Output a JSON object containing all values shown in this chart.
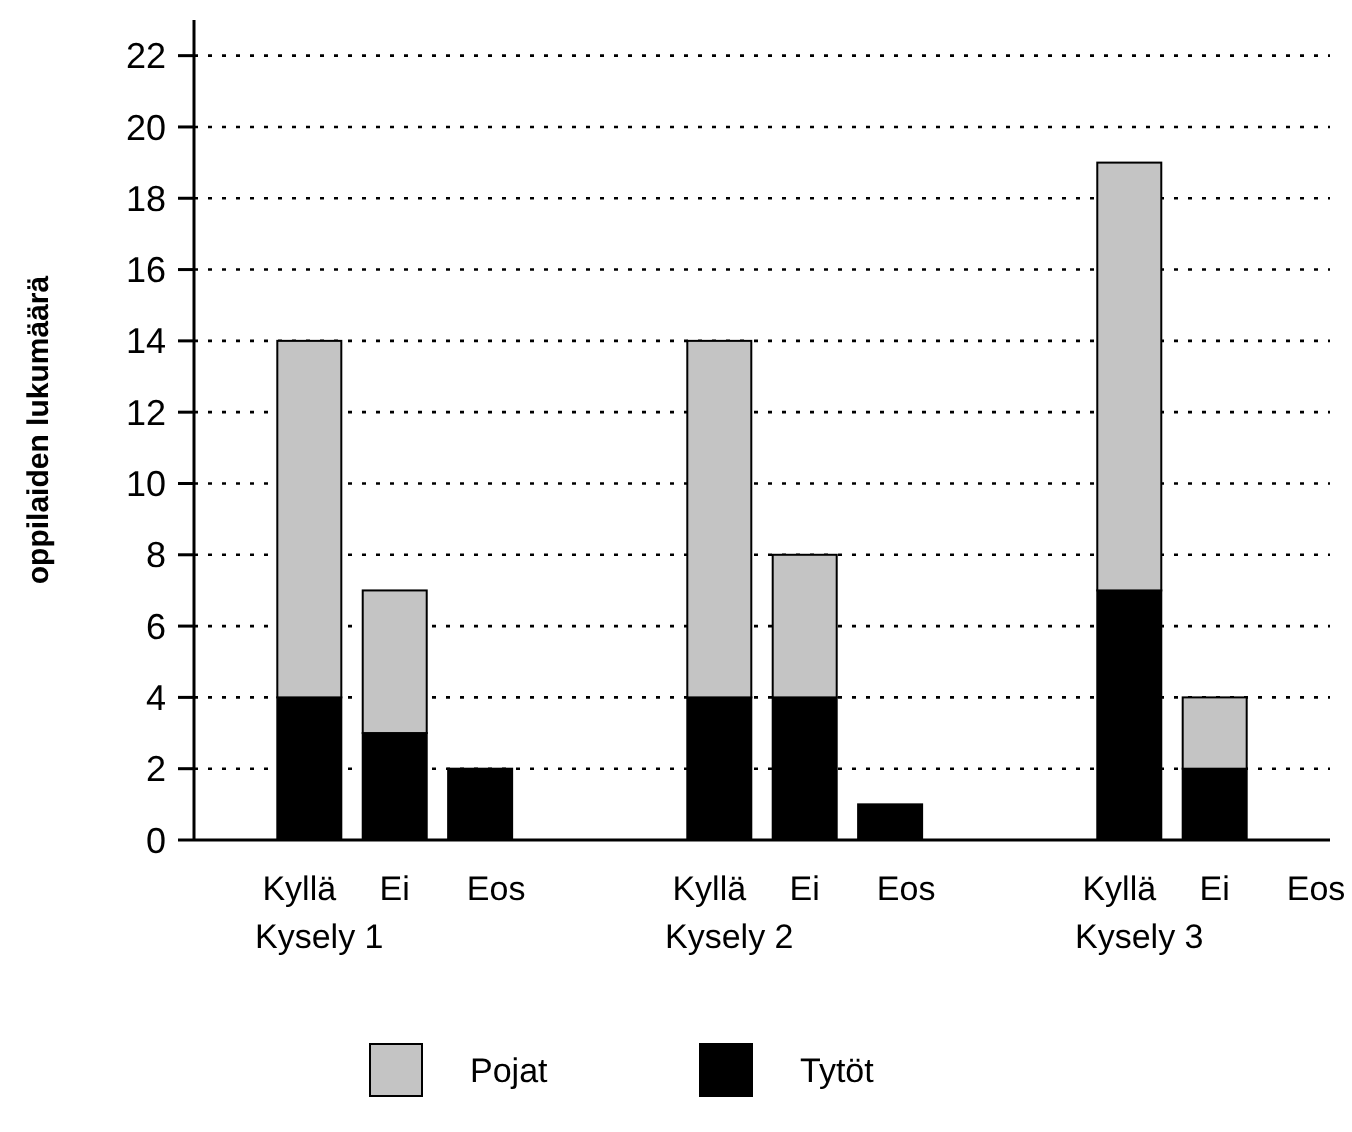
{
  "chart_data": {
    "type": "bar",
    "ylabel": "oppilaiden lukumäärä",
    "categories": [
      "Kyllä",
      "Ei",
      "Eos",
      "Kyllä",
      "Ei",
      "Eos",
      "Kyllä",
      "Ei",
      "Eos"
    ],
    "annotations": [
      "Kysely 1",
      "Kysely 2",
      "Kysely 3"
    ],
    "series": [
      {
        "name": "Tytöt",
        "color": "#000000",
        "values": [
          4,
          3,
          2,
          4,
          4,
          1,
          7,
          2,
          0
        ]
      },
      {
        "name": "Pojat",
        "color": "#c4c4c4",
        "values": [
          10,
          4,
          0,
          10,
          4,
          0,
          12,
          2,
          0
        ]
      }
    ],
    "stacked": true,
    "ylim": [
      0,
      23
    ],
    "yticks": [
      0,
      2,
      4,
      6,
      8,
      10,
      12,
      14,
      16,
      18,
      20,
      22
    ],
    "grid": "y",
    "legend": "bottom"
  }
}
